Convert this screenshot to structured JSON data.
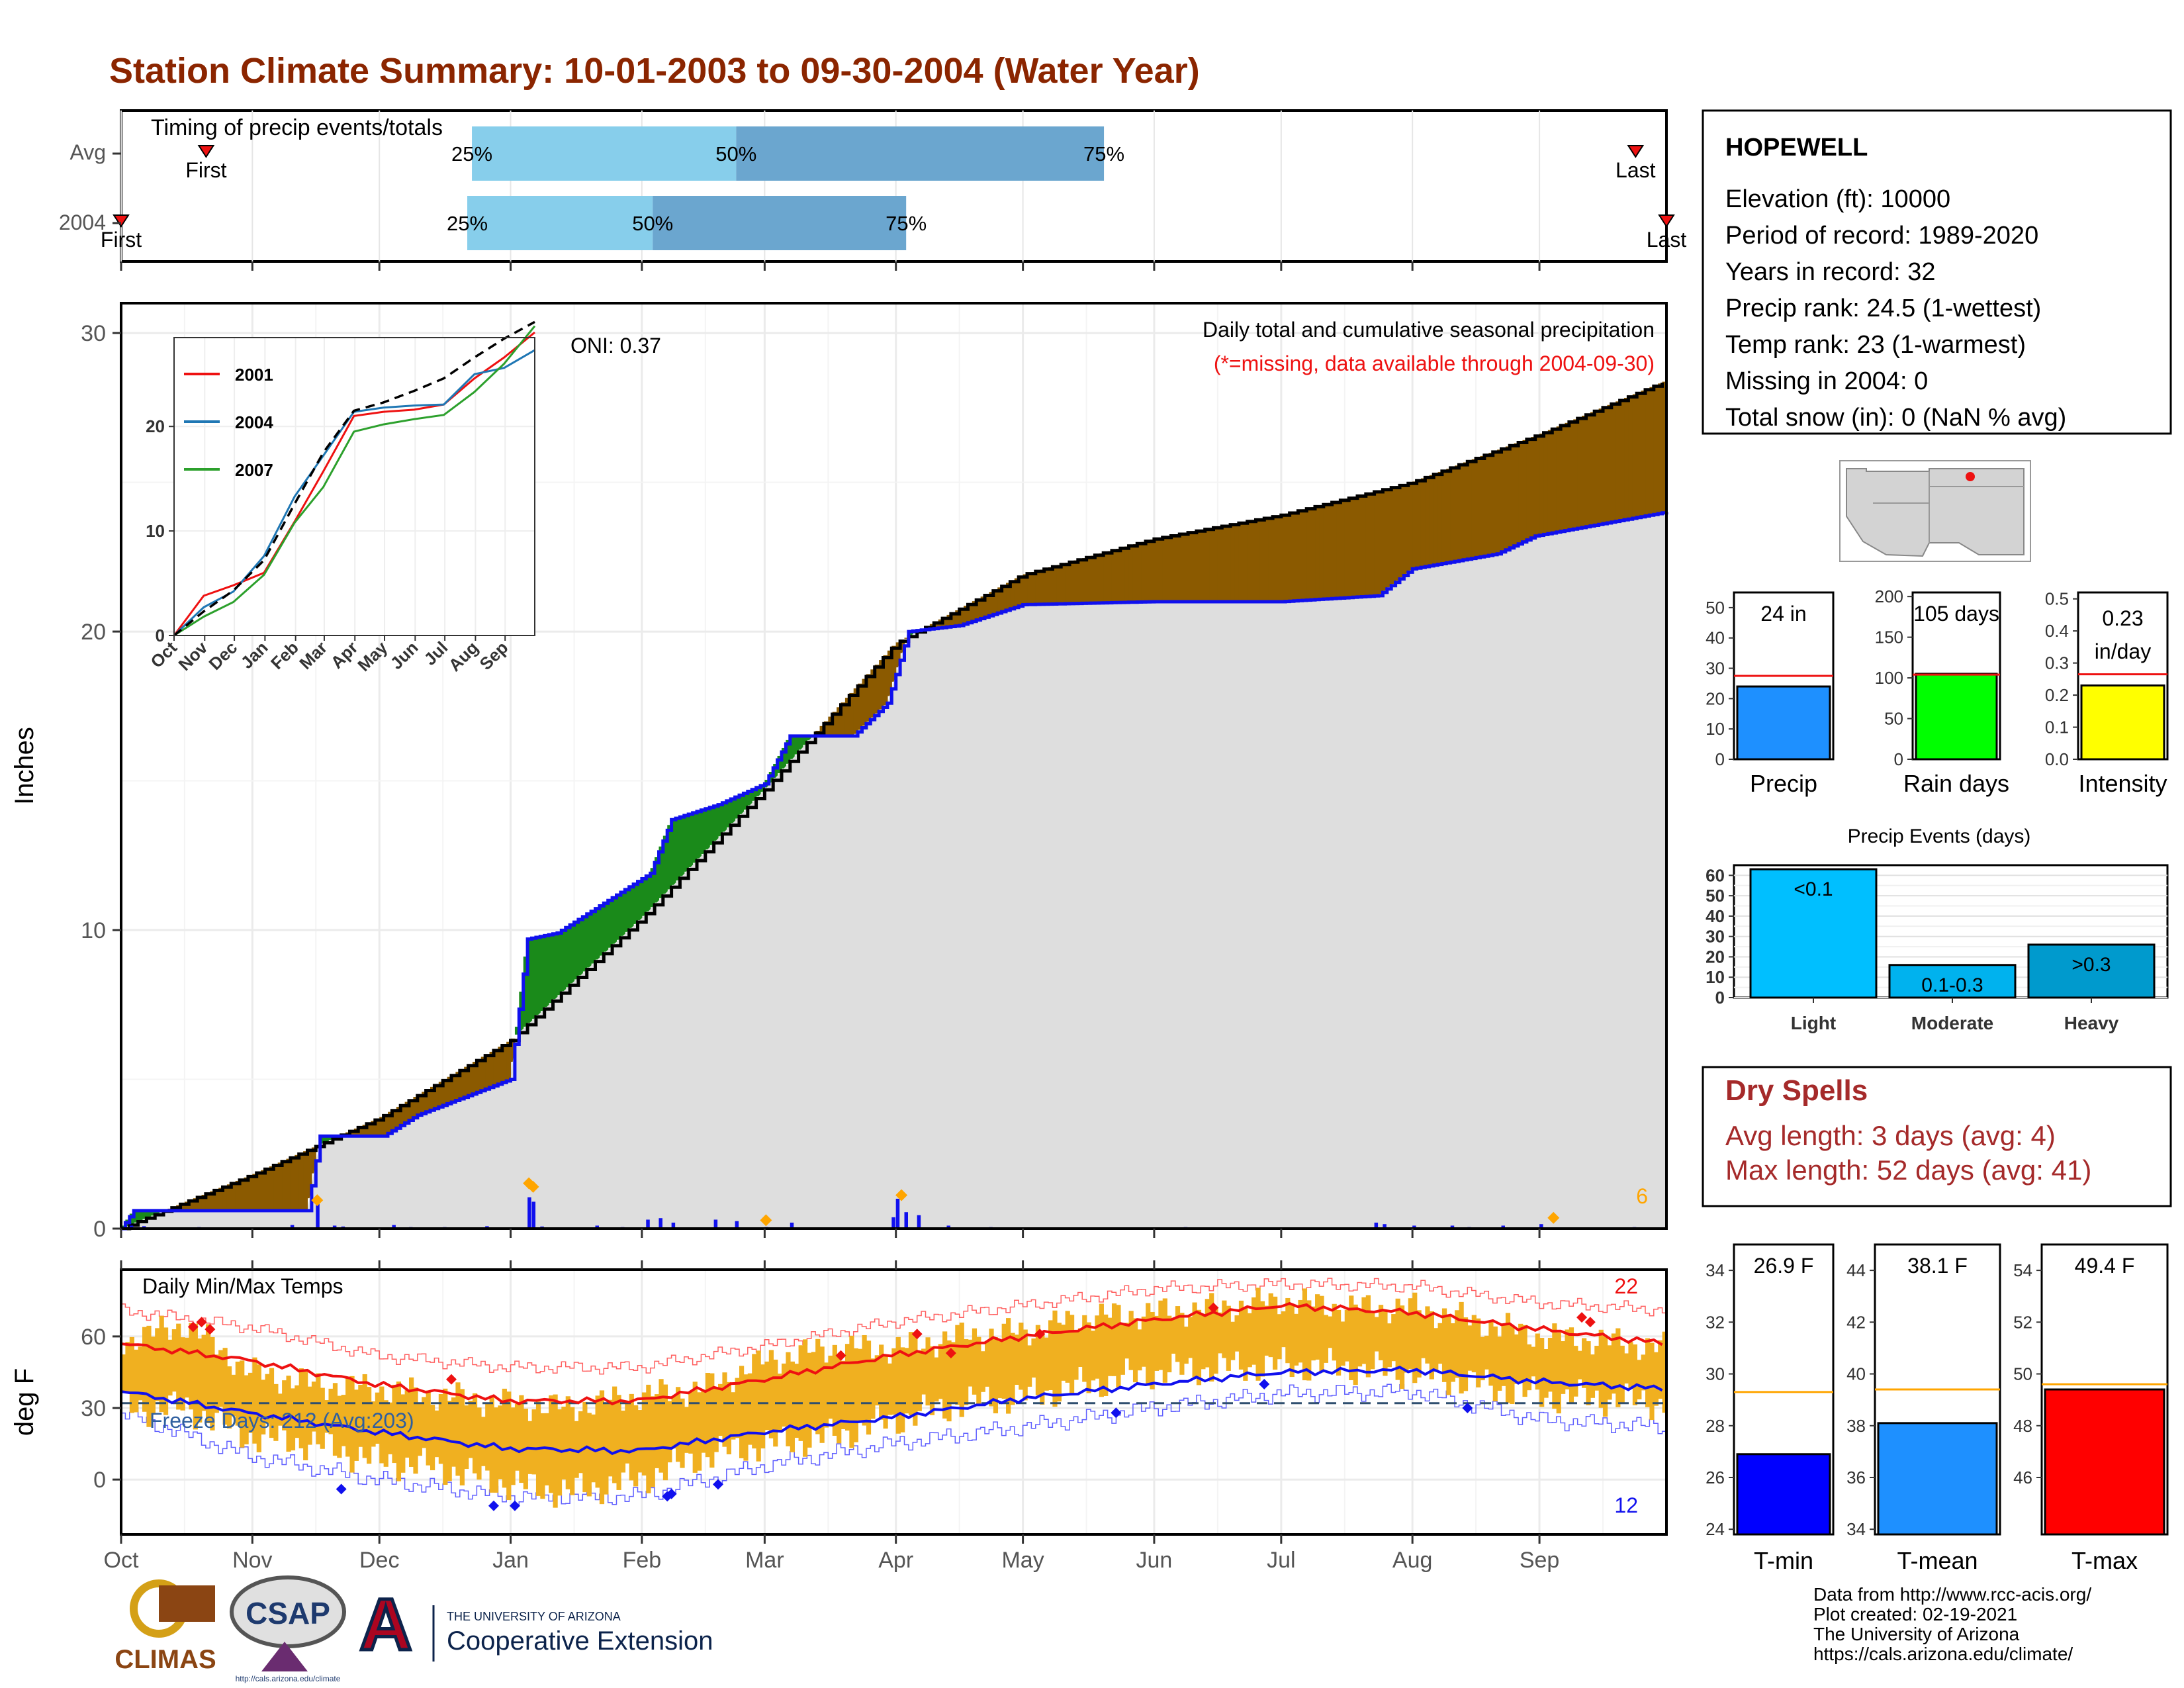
{
  "page": {
    "title": "Station Climate Summary: 10-01-2003 to 09-30-2004 (Water Year)"
  },
  "colors": {
    "title": "#8B2500",
    "pct_light": "#87CEEB",
    "pct_dark": "#6BA6CF",
    "deficit_brown": "#8B5A00",
    "surplus_green": "#1A8A1A",
    "avg_fill": "#DEDEDE",
    "blue": "#1010EE",
    "temp_bar": "#F0B020",
    "red": "#EE1111",
    "dry_spells": "#A52A2A"
  },
  "timing": {
    "title": "Timing of precip events/totals",
    "rows": [
      {
        "label": "Avg",
        "first_label": "First",
        "last_label": "Last",
        "first": 0.055,
        "last": 0.98,
        "p25": 0.227,
        "p50": 0.398,
        "p75": 0.636,
        "labels": [
          "25%",
          "50%",
          "75%"
        ]
      },
      {
        "label": "2004",
        "first_label": "First",
        "last_label": "Last",
        "first": 0.0,
        "last": 1.0,
        "p25": 0.224,
        "p50": 0.344,
        "p75": 0.508,
        "labels": [
          "25%",
          "50%",
          "75%"
        ]
      }
    ]
  },
  "station": {
    "name": "HOPEWELL",
    "lines": [
      "Elevation (ft): 10000",
      "Period of record: 1989-2020",
      "Years in record: 32",
      "Precip rank: 24.5 (1-wettest)",
      "Temp rank: 23 (1-warmest)",
      "Missing in 2004: 0",
      "Total snow (in): 0 (NaN % avg)"
    ]
  },
  "summary_bars": [
    {
      "label": "Precip",
      "value_label": "24 in",
      "value": 24,
      "avg": 27.5,
      "ylim": [
        0,
        55
      ],
      "ticks": [
        0,
        10,
        20,
        30,
        40,
        50
      ],
      "color": "#1E90FF"
    },
    {
      "label": "Rain days",
      "value_label": "105 days",
      "value": 105,
      "avg": 104,
      "ylim": [
        0,
        205
      ],
      "ticks": [
        0,
        50,
        100,
        150,
        200
      ],
      "color": "#00FF00"
    },
    {
      "label": "Intensity",
      "value_label": "0.23 in/day",
      "value": 0.23,
      "avg": 0.265,
      "ylim": [
        0,
        0.52
      ],
      "ticks": [
        "0.0",
        "0.1",
        "0.2",
        "0.3",
        "0.4",
        "0.5"
      ],
      "color": "#FFFF00"
    }
  ],
  "precip_events": {
    "title": "Precip Events (days)",
    "ylim": [
      0,
      65
    ],
    "ticks": [
      0,
      10,
      20,
      30,
      40,
      50,
      60
    ],
    "bars": [
      {
        "category": "Light",
        "label": "<0.1",
        "value": 63,
        "color": "#00BFFF"
      },
      {
        "category": "Moderate",
        "label": "0.1-0.3",
        "value": 16,
        "color": "#00B2EE"
      },
      {
        "category": "Heavy",
        "label": ">0.3",
        "value": 26,
        "color": "#009ACD"
      }
    ]
  },
  "dry_spells": {
    "title": "Dry Spells",
    "lines": [
      "Avg length: 3 days (avg: 4)",
      "Max length: 52 days (avg: 41)"
    ]
  },
  "temp_bars": [
    {
      "label": "T-min",
      "value_label": "26.9 F",
      "value": 26.9,
      "avg": 29.3,
      "ylim": [
        23.8,
        35
      ],
      "ticks": [
        24,
        26,
        28,
        30,
        32,
        34
      ],
      "color": "#0000FF"
    },
    {
      "label": "T-mean",
      "value_label": "38.1 F",
      "value": 38.1,
      "avg": 39.4,
      "ylim": [
        33.8,
        45
      ],
      "ticks": [
        34,
        36,
        38,
        40,
        42,
        44
      ],
      "color": "#1E90FF"
    },
    {
      "label": "T-max",
      "value_label": "49.4 F",
      "value": 49.4,
      "avg": 49.6,
      "ylim": [
        43.8,
        55
      ],
      "ticks": [
        46,
        48,
        50,
        52,
        54
      ],
      "color": "#FF0000"
    }
  ],
  "chart_data": {
    "type": "area",
    "title": "Daily total and cumulative seasonal precipitation",
    "subtitle": "(*=missing, data available through 2004-09-30)",
    "ylabel": "Inches",
    "ylim": [
      0,
      31
    ],
    "y_ticks": [
      0,
      10,
      20,
      30
    ],
    "month_ticks": [
      "Oct",
      "Nov",
      "Dec",
      "Jan",
      "Feb",
      "Mar",
      "Apr",
      "May",
      "Jun",
      "Jul",
      "Aug",
      "Sep"
    ],
    "oni_label": "ONI: 0.37",
    "extreme_count": "6",
    "avg_cumulative": [
      [
        0,
        0
      ],
      [
        31,
        1.8
      ],
      [
        61,
        3.7
      ],
      [
        92,
        6.3
      ],
      [
        123,
        10.4
      ],
      [
        152,
        14.7
      ],
      [
        183,
        19.6
      ],
      [
        213,
        21.9
      ],
      [
        244,
        23.1
      ],
      [
        274,
        23.9
      ],
      [
        305,
        25.0
      ],
      [
        335,
        26.6
      ],
      [
        365,
        28.4
      ]
    ],
    "obs_cumulative": [
      [
        0,
        0
      ],
      [
        3,
        0.6
      ],
      [
        44,
        0.6
      ],
      [
        47,
        3.1
      ],
      [
        62,
        3.1
      ],
      [
        70,
        3.8
      ],
      [
        92,
        5.0
      ],
      [
        96,
        9.7
      ],
      [
        103,
        9.9
      ],
      [
        125,
        11.9
      ],
      [
        130,
        13.7
      ],
      [
        141,
        14.2
      ],
      [
        152,
        14.9
      ],
      [
        158,
        16.5
      ],
      [
        173,
        16.5
      ],
      [
        181,
        17.6
      ],
      [
        186,
        20.0
      ],
      [
        198,
        20.2
      ],
      [
        213,
        20.9
      ],
      [
        244,
        21.0
      ],
      [
        274,
        21.0
      ],
      [
        297,
        21.2
      ],
      [
        305,
        22.1
      ],
      [
        325,
        22.6
      ],
      [
        334,
        23.2
      ],
      [
        365,
        24.0
      ]
    ],
    "daily_precip": [
      [
        2,
        0.1
      ],
      [
        5,
        0.08
      ],
      [
        18,
        0.05
      ],
      [
        40,
        0.12
      ],
      [
        46,
        0.85
      ],
      [
        50,
        0.1
      ],
      [
        52,
        0.07
      ],
      [
        58,
        0.03
      ],
      [
        64,
        0.12
      ],
      [
        68,
        0.05
      ],
      [
        76,
        0.05
      ],
      [
        86,
        0.08
      ],
      [
        96,
        1.05
      ],
      [
        97,
        0.9
      ],
      [
        99,
        0.07
      ],
      [
        112,
        0.1
      ],
      [
        118,
        0.05
      ],
      [
        124,
        0.3
      ],
      [
        127,
        0.35
      ],
      [
        130,
        0.2
      ],
      [
        140,
        0.3
      ],
      [
        145,
        0.25
      ],
      [
        152,
        0.05
      ],
      [
        158,
        0.2
      ],
      [
        182,
        0.38
      ],
      [
        183,
        1.0
      ],
      [
        185,
        0.55
      ],
      [
        188,
        0.45
      ],
      [
        195,
        0.1
      ],
      [
        205,
        0.05
      ],
      [
        214,
        0.04
      ],
      [
        251,
        0.05
      ],
      [
        296,
        0.2
      ],
      [
        298,
        0.15
      ],
      [
        305,
        0.1
      ],
      [
        314,
        0.1
      ],
      [
        318,
        0.05
      ],
      [
        326,
        0.1
      ],
      [
        335,
        0.15
      ],
      [
        357,
        0.05
      ]
    ],
    "extreme_markers": [
      [
        46,
        0.95
      ],
      [
        96,
        1.52
      ],
      [
        97,
        1.4
      ],
      [
        152,
        0.28
      ],
      [
        184,
        1.12
      ],
      [
        338,
        0.36
      ]
    ],
    "inset": {
      "legend": [
        "2001",
        "2004",
        "2007"
      ],
      "colors": [
        "#EE1111",
        "#1F77B4",
        "#2CA02C"
      ],
      "ylim": [
        0,
        28.5
      ],
      "y_ticks": [
        0,
        10,
        20
      ],
      "month_ticks": [
        "Oct",
        "Nov",
        "Dec",
        "Jan",
        "Feb",
        "Mar",
        "Apr",
        "May",
        "Jun",
        "Jul",
        "Aug",
        "Sep"
      ],
      "avg_series": [
        [
          0,
          0
        ],
        [
          30,
          2.3
        ],
        [
          60,
          4.3
        ],
        [
          91,
          7.2
        ],
        [
          122,
          12.6
        ],
        [
          151,
          17.5
        ],
        [
          182,
          21.5
        ],
        [
          212,
          22.3
        ],
        [
          243,
          23.4
        ],
        [
          273,
          24.6
        ],
        [
          304,
          26.6
        ],
        [
          334,
          28.4
        ],
        [
          365,
          30.0
        ]
      ],
      "series": [
        {
          "name": "2001",
          "points": [
            [
              0,
              0
            ],
            [
              30,
              3.8
            ],
            [
              60,
              4.8
            ],
            [
              91,
              6.0
            ],
            [
              122,
              10.9
            ],
            [
              151,
              15.7
            ],
            [
              182,
              21.0
            ],
            [
              212,
              21.4
            ],
            [
              243,
              21.6
            ],
            [
              273,
              22.1
            ],
            [
              304,
              24.6
            ],
            [
              334,
              26.6
            ],
            [
              365,
              29.0
            ]
          ]
        },
        {
          "name": "2004",
          "points": [
            [
              0,
              0
            ],
            [
              30,
              2.7
            ],
            [
              60,
              4.2
            ],
            [
              91,
              7.6
            ],
            [
              122,
              13.3
            ],
            [
              151,
              17.2
            ],
            [
              182,
              21.4
            ],
            [
              212,
              21.8
            ],
            [
              243,
              22.0
            ],
            [
              273,
              22.1
            ],
            [
              304,
              25.0
            ],
            [
              334,
              25.6
            ],
            [
              365,
              27.3
            ]
          ]
        },
        {
          "name": "2007",
          "points": [
            [
              0,
              0
            ],
            [
              30,
              1.8
            ],
            [
              60,
              3.2
            ],
            [
              91,
              5.8
            ],
            [
              122,
              10.8
            ],
            [
              151,
              14.2
            ],
            [
              182,
              19.5
            ],
            [
              212,
              20.2
            ],
            [
              243,
              20.7
            ],
            [
              273,
              21.1
            ],
            [
              304,
              23.3
            ],
            [
              334,
              26.0
            ],
            [
              365,
              29.6
            ]
          ]
        }
      ]
    },
    "temps": {
      "title": "Daily Min/Max Temps",
      "ylabel": "deg F",
      "ylim": [
        -23,
        88
      ],
      "y_ticks": [
        0,
        30,
        60
      ],
      "freeze_label": "Freeze Days: 212 (Avg:203)",
      "freeze_line": 32,
      "hot_count": "22",
      "cold_count": "12",
      "avg_max": [
        [
          0,
          57
        ],
        [
          30,
          50
        ],
        [
          60,
          40
        ],
        [
          91,
          33
        ],
        [
          122,
          33
        ],
        [
          152,
          42
        ],
        [
          182,
          52
        ],
        [
          213,
          60
        ],
        [
          244,
          67
        ],
        [
          274,
          73
        ],
        [
          305,
          70
        ],
        [
          335,
          63
        ],
        [
          365,
          57
        ]
      ],
      "avg_min": [
        [
          0,
          37
        ],
        [
          30,
          28
        ],
        [
          60,
          20
        ],
        [
          91,
          13
        ],
        [
          122,
          12
        ],
        [
          152,
          20
        ],
        [
          182,
          26
        ],
        [
          213,
          34
        ],
        [
          244,
          40
        ],
        [
          274,
          45
        ],
        [
          305,
          46
        ],
        [
          335,
          41
        ],
        [
          365,
          38
        ]
      ],
      "max_envelope": [
        [
          0,
          71
        ],
        [
          30,
          64
        ],
        [
          60,
          52
        ],
        [
          91,
          47
        ],
        [
          122,
          47
        ],
        [
          152,
          56
        ],
        [
          182,
          66
        ],
        [
          213,
          73
        ],
        [
          244,
          80
        ],
        [
          274,
          82
        ],
        [
          305,
          81
        ],
        [
          335,
          74
        ],
        [
          365,
          71
        ]
      ],
      "min_envelope": [
        [
          0,
          28
        ],
        [
          30,
          10
        ],
        [
          60,
          0
        ],
        [
          91,
          -7
        ],
        [
          122,
          -7
        ],
        [
          152,
          6
        ],
        [
          182,
          15
        ],
        [
          213,
          22
        ],
        [
          244,
          30
        ],
        [
          274,
          36
        ],
        [
          305,
          37
        ],
        [
          335,
          25
        ],
        [
          365,
          22
        ]
      ],
      "daily_max": [
        [
          0,
          58
        ],
        [
          15,
          65
        ],
        [
          30,
          45
        ],
        [
          45,
          40
        ],
        [
          60,
          38
        ],
        [
          75,
          35
        ],
        [
          91,
          32
        ],
        [
          105,
          30
        ],
        [
          122,
          35
        ],
        [
          137,
          38
        ],
        [
          152,
          50
        ],
        [
          167,
          55
        ],
        [
          182,
          55
        ],
        [
          198,
          60
        ],
        [
          213,
          62
        ],
        [
          228,
          68
        ],
        [
          244,
          70
        ],
        [
          259,
          72
        ],
        [
          274,
          75
        ],
        [
          289,
          72
        ],
        [
          305,
          72
        ],
        [
          320,
          66
        ],
        [
          335,
          60
        ],
        [
          350,
          58
        ],
        [
          365,
          55
        ]
      ],
      "daily_min": [
        [
          0,
          30
        ],
        [
          15,
          30
        ],
        [
          30,
          18
        ],
        [
          45,
          15
        ],
        [
          60,
          8
        ],
        [
          75,
          5
        ],
        [
          91,
          -2
        ],
        [
          105,
          -5
        ],
        [
          122,
          0
        ],
        [
          137,
          10
        ],
        [
          152,
          15
        ],
        [
          167,
          18
        ],
        [
          182,
          25
        ],
        [
          198,
          32
        ],
        [
          213,
          35
        ],
        [
          228,
          40
        ],
        [
          244,
          45
        ],
        [
          259,
          47
        ],
        [
          274,
          48
        ],
        [
          289,
          47
        ],
        [
          305,
          45
        ],
        [
          320,
          40
        ],
        [
          335,
          35
        ],
        [
          350,
          34
        ],
        [
          365,
          32
        ]
      ],
      "hot_markers": [
        [
          17,
          64
        ],
        [
          19,
          66
        ],
        [
          21,
          63
        ],
        [
          78,
          42
        ],
        [
          170,
          52
        ],
        [
          188,
          61
        ],
        [
          196,
          53
        ],
        [
          217,
          61
        ],
        [
          258,
          72
        ],
        [
          345,
          68
        ],
        [
          347,
          66
        ]
      ],
      "cold_markers": [
        [
          52,
          -4
        ],
        [
          88,
          -11
        ],
        [
          93,
          -11
        ],
        [
          129,
          -7
        ],
        [
          130,
          -6
        ],
        [
          141,
          -2
        ],
        [
          235,
          28
        ],
        [
          270,
          40
        ],
        [
          318,
          30
        ]
      ]
    }
  },
  "credits": {
    "lines": [
      "Data from http://www.rcc-acis.org/",
      "Plot created: 02-19-2021",
      "The University of Arizona",
      "https://cals.arizona.edu/climate/"
    ],
    "climas": "CLIMAS",
    "csap": "CSAP",
    "csap_url": "http://cals.arizona.edu/climate",
    "ua_top": "THE UNIVERSITY OF ARIZONA",
    "ua_bottom": "Cooperative Extension",
    "ua_letter": "A"
  }
}
